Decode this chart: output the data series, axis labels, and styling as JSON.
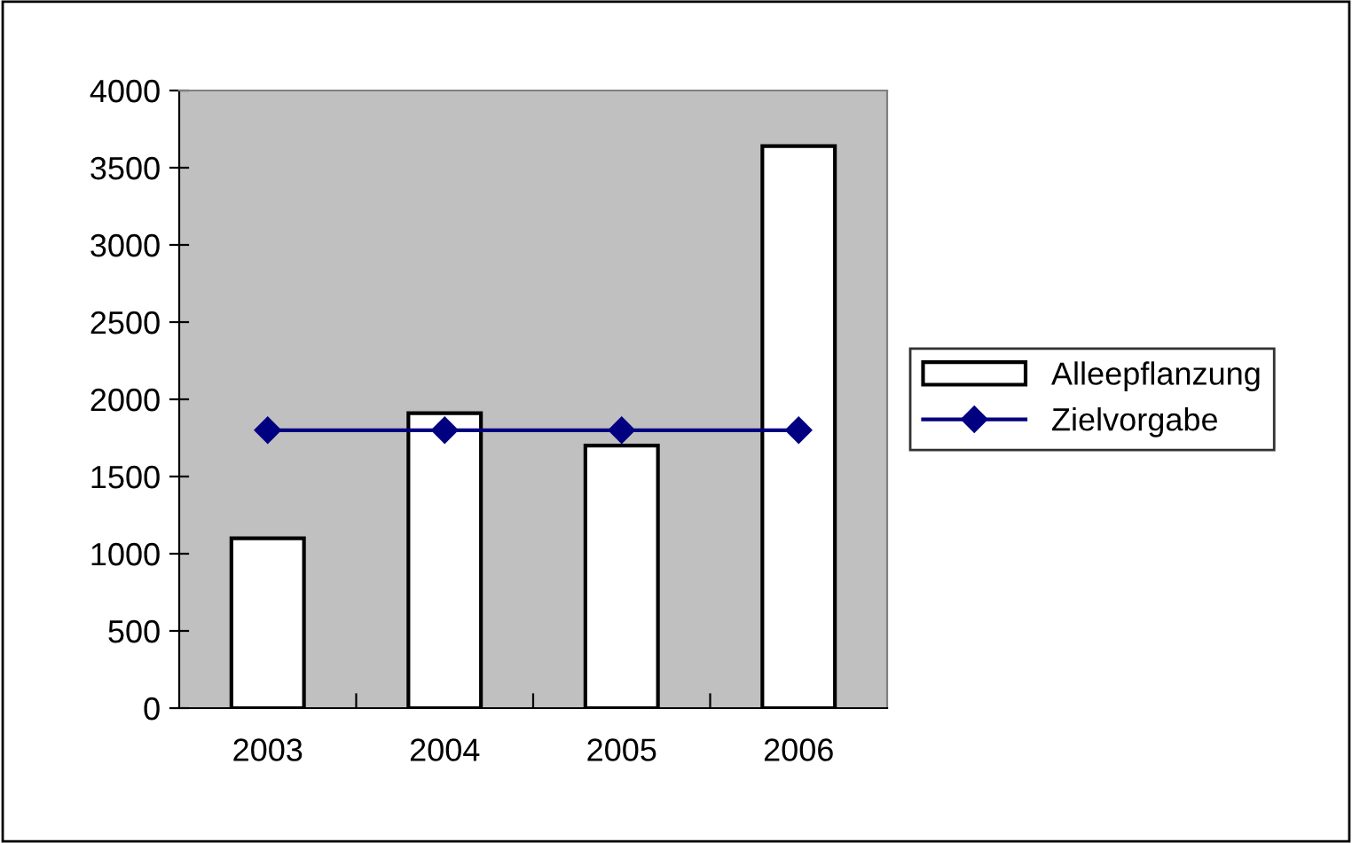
{
  "chart_data": {
    "type": "bar",
    "categories": [
      "2003",
      "2004",
      "2005",
      "2006"
    ],
    "series": [
      {
        "name": "Alleepflanzung",
        "color": "#ffffff",
        "values": [
          1100,
          1910,
          1700,
          3640
        ]
      },
      {
        "name": "Zielvorgabe",
        "type": "line",
        "color": "#000080",
        "marker": "diamond",
        "values": [
          1800,
          1800,
          1800,
          1800
        ]
      }
    ],
    "ylim": [
      0,
      4000
    ],
    "yticks": [
      0,
      500,
      1000,
      1500,
      2000,
      2500,
      3000,
      3500,
      4000
    ],
    "grid": false,
    "legend": "right"
  }
}
